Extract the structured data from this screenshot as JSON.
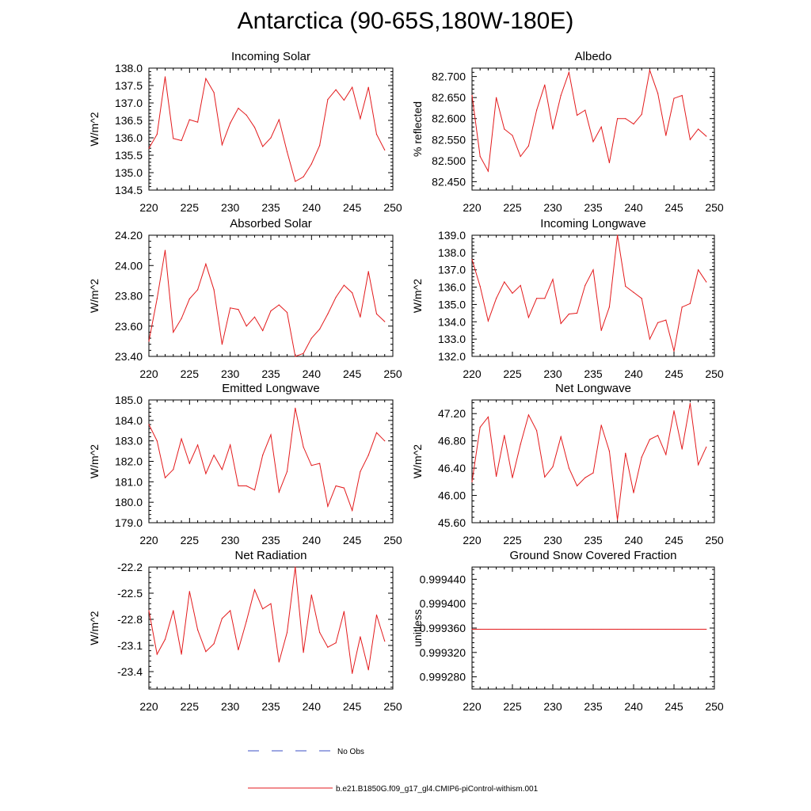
{
  "page": {
    "title": "Antarctica (90-65S,180W-180E)"
  },
  "colors": {
    "model_line": "#e31a1c",
    "obs_line": "#3b4fc4",
    "frame": "#000000"
  },
  "legend": {
    "obs_label": "No Obs",
    "model_label": "b.e21.B1850G.f09_g17_gl4.CMIP6-piControl-withism.001"
  },
  "chart_data": [
    {
      "type": "line",
      "title": "Incoming Solar",
      "ylabel": "W/m^2",
      "xlabel": "",
      "xlim": [
        220,
        250
      ],
      "ylim": [
        134.5,
        138.0
      ],
      "xticks": [
        "220",
        "225",
        "230",
        "235",
        "240",
        "245",
        "250"
      ],
      "yticks": [
        "134.5",
        "135.0",
        "135.5",
        "136.0",
        "136.5",
        "137.0",
        "137.5",
        "138.0"
      ],
      "x": [
        220,
        221,
        222,
        223,
        224,
        225,
        226,
        227,
        228,
        229,
        230,
        231,
        232,
        233,
        234,
        235,
        236,
        237,
        238,
        239,
        240,
        241,
        242,
        243,
        244,
        245,
        246,
        247,
        248,
        249
      ],
      "series": [
        {
          "values": [
            135.7,
            136.1,
            137.75,
            135.98,
            135.92,
            136.52,
            136.45,
            137.7,
            137.3,
            135.8,
            136.42,
            136.85,
            136.65,
            136.3,
            135.75,
            136.0,
            136.52,
            135.6,
            134.75,
            134.88,
            135.25,
            135.78,
            137.1,
            137.38,
            137.08,
            137.45,
            136.55,
            137.45,
            136.1,
            135.65
          ]
        }
      ]
    },
    {
      "type": "line",
      "title": "Albedo",
      "ylabel": "% reflected",
      "xlabel": "",
      "xlim": [
        220,
        250
      ],
      "ylim": [
        82.43,
        82.72
      ],
      "xticks": [
        "220",
        "225",
        "230",
        "235",
        "240",
        "245",
        "250"
      ],
      "yticks": [
        "82.450",
        "82.500",
        "82.550",
        "82.600",
        "82.650",
        "82.700"
      ],
      "x": [
        220,
        221,
        222,
        223,
        224,
        225,
        226,
        227,
        228,
        229,
        230,
        231,
        232,
        233,
        234,
        235,
        236,
        237,
        238,
        239,
        240,
        241,
        242,
        243,
        244,
        245,
        246,
        247,
        248,
        249
      ],
      "series": [
        {
          "values": [
            82.655,
            82.51,
            82.475,
            82.65,
            82.575,
            82.56,
            82.51,
            82.535,
            82.62,
            82.68,
            82.575,
            82.655,
            82.71,
            82.608,
            82.62,
            82.545,
            82.58,
            82.495,
            82.6,
            82.6,
            82.587,
            82.61,
            82.715,
            82.66,
            82.56,
            82.648,
            82.655,
            82.55,
            82.575,
            82.558
          ]
        }
      ]
    },
    {
      "type": "line",
      "title": "Absorbed Solar",
      "ylabel": "W/m^2",
      "xlabel": "",
      "xlim": [
        220,
        250
      ],
      "ylim": [
        23.4,
        24.2
      ],
      "xticks": [
        "220",
        "225",
        "230",
        "235",
        "240",
        "245",
        "250"
      ],
      "yticks": [
        "23.40",
        "23.60",
        "23.80",
        "24.00",
        "24.20"
      ],
      "x": [
        220,
        221,
        222,
        223,
        224,
        225,
        226,
        227,
        228,
        229,
        230,
        231,
        232,
        233,
        234,
        235,
        236,
        237,
        238,
        239,
        240,
        241,
        242,
        243,
        244,
        245,
        246,
        247,
        248,
        249
      ],
      "series": [
        {
          "values": [
            23.5,
            23.78,
            24.1,
            23.56,
            23.65,
            23.78,
            23.84,
            24.01,
            23.84,
            23.48,
            23.72,
            23.71,
            23.6,
            23.66,
            23.57,
            23.7,
            23.74,
            23.69,
            23.4,
            23.42,
            23.52,
            23.58,
            23.68,
            23.79,
            23.87,
            23.82,
            23.66,
            23.96,
            23.68,
            23.63
          ]
        }
      ]
    },
    {
      "type": "line",
      "title": "Incoming Longwave",
      "ylabel": "W/m^2",
      "xlabel": "",
      "xlim": [
        220,
        250
      ],
      "ylim": [
        132.0,
        139.0
      ],
      "xticks": [
        "220",
        "225",
        "230",
        "235",
        "240",
        "245",
        "250"
      ],
      "yticks": [
        "132.0",
        "133.0",
        "134.0",
        "135.0",
        "136.0",
        "137.0",
        "138.0",
        "139.0"
      ],
      "x": [
        220,
        221,
        222,
        223,
        224,
        225,
        226,
        227,
        228,
        229,
        230,
        231,
        232,
        233,
        234,
        235,
        236,
        237,
        238,
        239,
        240,
        241,
        242,
        243,
        244,
        245,
        246,
        247,
        248,
        249
      ],
      "series": [
        {
          "values": [
            137.6,
            136.05,
            134.05,
            135.35,
            136.3,
            135.65,
            136.1,
            134.25,
            135.35,
            135.35,
            136.45,
            133.9,
            134.45,
            134.5,
            136.1,
            137.0,
            133.5,
            134.85,
            139.0,
            136.05,
            135.7,
            135.35,
            133.0,
            133.95,
            134.1,
            132.3,
            134.85,
            135.05,
            137.0,
            136.3
          ]
        }
      ]
    },
    {
      "type": "line",
      "title": "Emitted Longwave",
      "ylabel": "W/m^2",
      "xlabel": "",
      "xlim": [
        220,
        250
      ],
      "ylim": [
        179.0,
        185.0
      ],
      "xticks": [
        "220",
        "225",
        "230",
        "235",
        "240",
        "245",
        "250"
      ],
      "yticks": [
        "179.0",
        "180.0",
        "181.0",
        "182.0",
        "183.0",
        "184.0",
        "185.0"
      ],
      "x": [
        220,
        221,
        222,
        223,
        224,
        225,
        226,
        227,
        228,
        229,
        230,
        231,
        232,
        233,
        234,
        235,
        236,
        237,
        238,
        239,
        240,
        241,
        242,
        243,
        244,
        245,
        246,
        247,
        248,
        249
      ],
      "series": [
        {
          "values": [
            183.8,
            183.0,
            181.2,
            181.6,
            183.1,
            181.9,
            182.8,
            181.4,
            182.3,
            181.6,
            182.8,
            180.8,
            180.8,
            180.6,
            182.3,
            183.3,
            180.5,
            181.5,
            184.6,
            182.7,
            181.8,
            181.9,
            179.8,
            180.8,
            180.7,
            179.6,
            181.5,
            182.3,
            183.4,
            183.0
          ]
        }
      ]
    },
    {
      "type": "line",
      "title": "Net Longwave",
      "ylabel": "W/m^2",
      "xlabel": "",
      "xlim": [
        220,
        250
      ],
      "ylim": [
        45.6,
        47.4
      ],
      "xticks": [
        "220",
        "225",
        "230",
        "235",
        "240",
        "245",
        "250"
      ],
      "yticks": [
        "45.60",
        "46.00",
        "46.40",
        "46.80",
        "47.20"
      ],
      "x": [
        220,
        221,
        222,
        223,
        224,
        225,
        226,
        227,
        228,
        229,
        230,
        231,
        232,
        233,
        234,
        235,
        236,
        237,
        238,
        239,
        240,
        241,
        242,
        243,
        244,
        245,
        246,
        247,
        248,
        249
      ],
      "series": [
        {
          "values": [
            46.2,
            47.0,
            47.15,
            46.28,
            46.88,
            46.26,
            46.75,
            47.18,
            46.95,
            46.27,
            46.42,
            46.86,
            46.4,
            46.14,
            46.26,
            46.33,
            47.03,
            46.65,
            45.64,
            46.62,
            46.04,
            46.56,
            46.82,
            46.88,
            46.6,
            47.24,
            46.68,
            47.35,
            46.45,
            46.71
          ]
        }
      ]
    },
    {
      "type": "line",
      "title": "Net Radiation",
      "ylabel": "W/m^2",
      "xlabel": "",
      "xlim": [
        220,
        250
      ],
      "ylim": [
        -23.6,
        -22.2
      ],
      "xticks": [
        "220",
        "225",
        "230",
        "235",
        "240",
        "245",
        "250"
      ],
      "yticks": [
        "-23.4",
        "-23.1",
        "-22.8",
        "-22.5",
        "-22.2"
      ],
      "x": [
        220,
        221,
        222,
        223,
        224,
        225,
        226,
        227,
        228,
        229,
        230,
        231,
        232,
        233,
        234,
        235,
        236,
        237,
        238,
        239,
        240,
        241,
        242,
        243,
        244,
        245,
        246,
        247,
        248,
        249
      ],
      "series": [
        {
          "values": [
            -22.7,
            -23.2,
            -23.03,
            -22.7,
            -23.2,
            -22.48,
            -22.92,
            -23.17,
            -23.08,
            -22.79,
            -22.7,
            -23.15,
            -22.82,
            -22.46,
            -22.68,
            -22.62,
            -23.29,
            -22.95,
            -22.2,
            -23.18,
            -22.52,
            -22.95,
            -23.12,
            -23.07,
            -22.71,
            -23.42,
            -23.0,
            -23.38,
            -22.75,
            -23.05
          ]
        }
      ]
    },
    {
      "type": "line",
      "title": "Ground Snow Covered Fraction",
      "ylabel": "unitless",
      "xlabel": "",
      "xlim": [
        220,
        250
      ],
      "ylim": [
        0.99926,
        0.99946
      ],
      "xticks": [
        "220",
        "225",
        "230",
        "235",
        "240",
        "245",
        "250"
      ],
      "yticks": [
        "0.999280",
        "0.999320",
        "0.999360",
        "0.999400",
        "0.999440"
      ],
      "x": [
        220,
        221,
        222,
        223,
        224,
        225,
        226,
        227,
        228,
        229,
        230,
        231,
        232,
        233,
        234,
        235,
        236,
        237,
        238,
        239,
        240,
        241,
        242,
        243,
        244,
        245,
        246,
        247,
        248,
        249
      ],
      "series": [
        {
          "values": [
            0.999358,
            0.999358,
            0.999358,
            0.999358,
            0.999358,
            0.999358,
            0.999358,
            0.999358,
            0.999358,
            0.999358,
            0.999358,
            0.999358,
            0.999358,
            0.999358,
            0.999358,
            0.999358,
            0.999358,
            0.999358,
            0.999358,
            0.999358,
            0.999358,
            0.999358,
            0.999358,
            0.999358,
            0.999358,
            0.999358,
            0.999358,
            0.999358,
            0.999358,
            0.999358
          ]
        }
      ]
    }
  ]
}
